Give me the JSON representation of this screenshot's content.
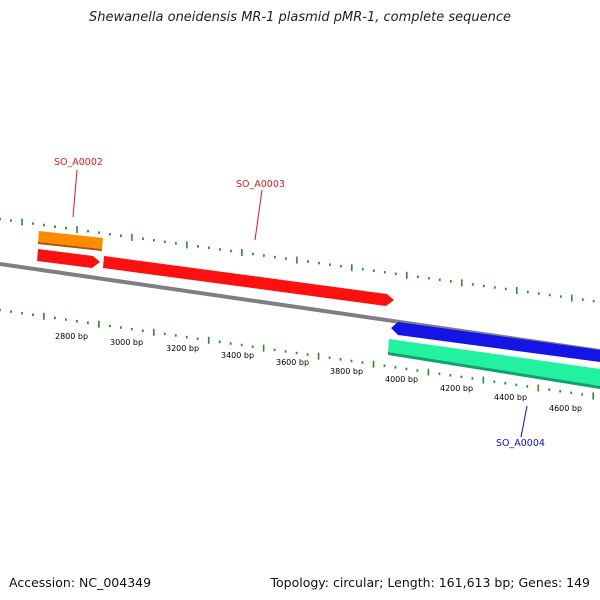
{
  "title": "Shewanella oneidensis MR-1 plasmid pMR-1, complete sequence",
  "footer": {
    "accession": "Accession: NC_004349",
    "summary": "Topology: circular; Length: 161,613 bp; Genes: 149"
  },
  "colors": {
    "backbone": "#7f7f7f",
    "tick": "#2e8b2e",
    "forward_gene": "#ff1010",
    "reverse_gene": "#1414e6",
    "orange_feature": "#ff8c00",
    "teal_feature": "#22f2a0",
    "label_forward": "#e31a1c",
    "label_reverse": "#1010c0"
  },
  "scale": {
    "tick_labels": [
      "2800 bp",
      "3000 bp",
      "3200 bp",
      "3400 bp",
      "3600 bp",
      "3800 bp",
      "4000 bp",
      "4200 bp",
      "4400 bp",
      "4600 bp"
    ]
  },
  "genes": [
    {
      "id": "SO_A0002",
      "label": "SO_A0002",
      "strand": "forward"
    },
    {
      "id": "SO_A0003",
      "label": "SO_A0003",
      "strand": "forward"
    },
    {
      "id": "SO_A0004",
      "label": "SO_A0004",
      "strand": "reverse"
    }
  ]
}
